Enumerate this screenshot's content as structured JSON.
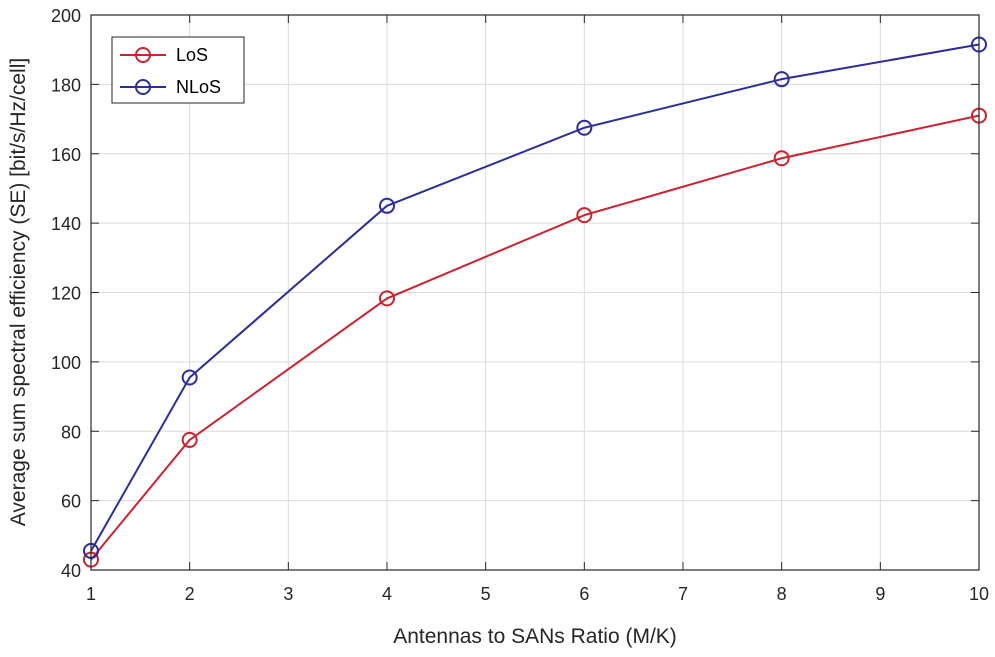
{
  "chart_data": {
    "type": "line",
    "title": "",
    "xlabel": "Antennas to SANs Ratio (M/K)",
    "ylabel": "Average sum spectral efficiency (SE) [bit/s/Hz/cell]",
    "xlim": [
      1,
      10
    ],
    "ylim": [
      40,
      200
    ],
    "xticks": [
      1,
      2,
      3,
      4,
      5,
      6,
      7,
      8,
      9,
      10
    ],
    "yticks": [
      40,
      60,
      80,
      100,
      120,
      140,
      160,
      180,
      200
    ],
    "grid": true,
    "legend_position": "top-left",
    "x": [
      1,
      2,
      4,
      6,
      8,
      10
    ],
    "series": [
      {
        "name": "LoS",
        "color": "#cc2230",
        "marker": "circle",
        "values": [
          43,
          77.5,
          118.3,
          142.3,
          158.7,
          171
        ]
      },
      {
        "name": "NLoS",
        "color": "#2c2c9c",
        "marker": "circle",
        "values": [
          45.5,
          95.5,
          145,
          167.5,
          181.5,
          191.5
        ]
      }
    ]
  }
}
